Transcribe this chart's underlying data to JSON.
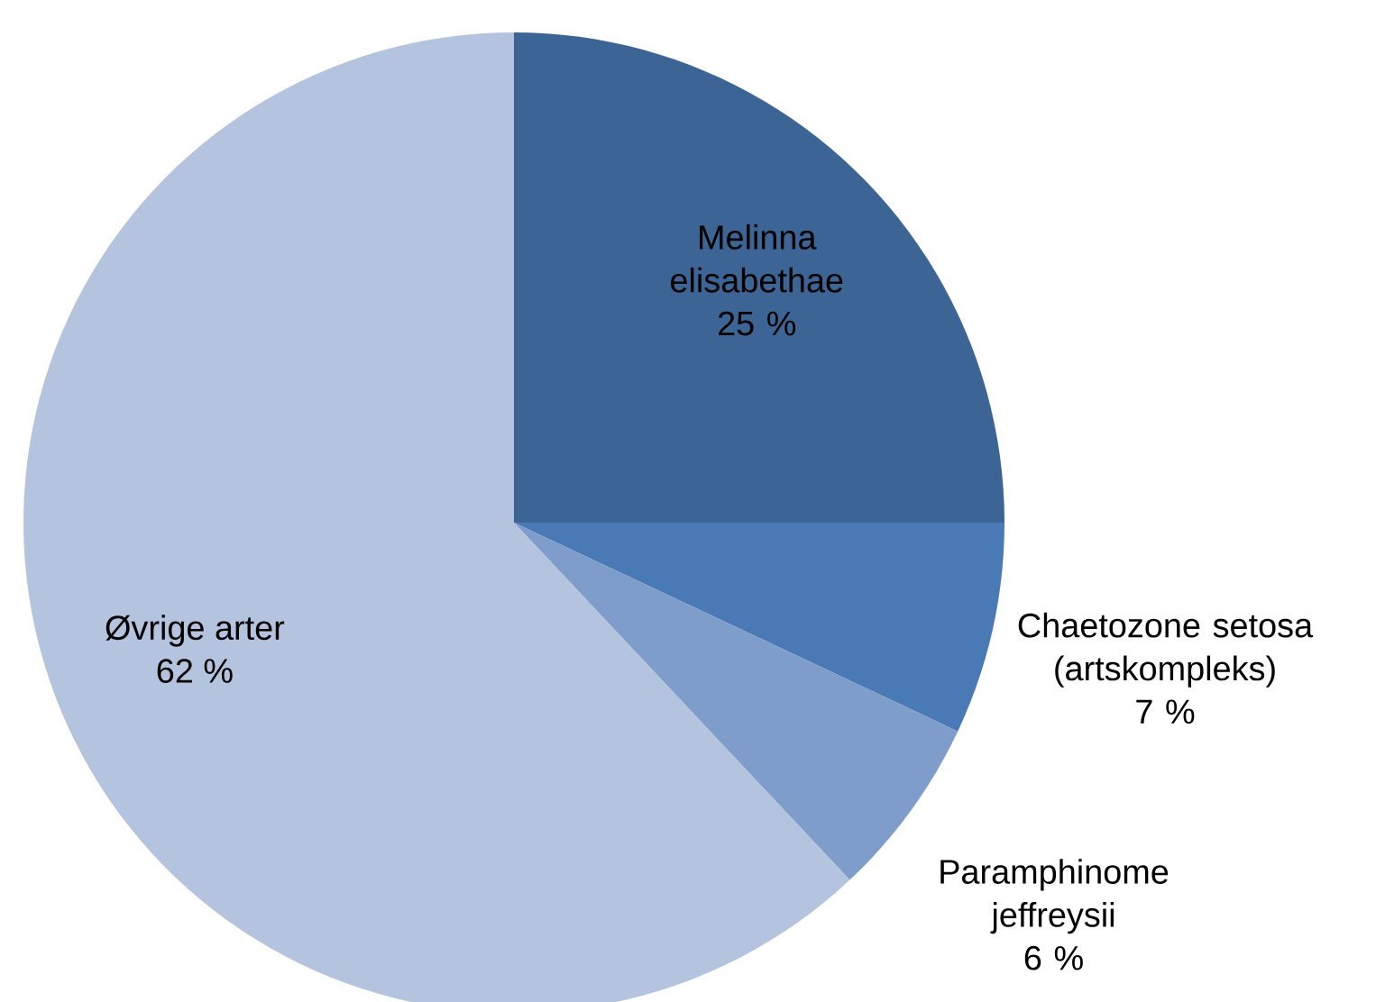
{
  "chart_data": {
    "type": "pie",
    "categories": [
      "Melinna elisabethae",
      "Chaetozone setosa (artskompleks)",
      "Paramphinome jeffreysii",
      "Øvrige arter"
    ],
    "values": [
      25,
      7,
      6,
      62
    ],
    "value_labels": [
      "25 %",
      "7 %",
      "6 %",
      "62 %"
    ],
    "colors": [
      "#3c6595",
      "#4a7ab5",
      "#7f9dca",
      "#b4c4df"
    ]
  }
}
